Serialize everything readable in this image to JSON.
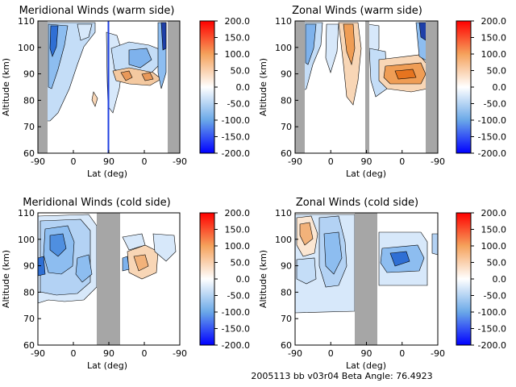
{
  "figure_footer": "2005113 bb v03r04   Beta Angle: 76.4923",
  "colorbar": {
    "ticks": [
      "200.0",
      "150.0",
      "100.0",
      "50.0",
      "0.0",
      "-50.0",
      "-100.0",
      "-150.0",
      "-200.0"
    ],
    "range": [
      -200,
      200
    ],
    "colors": {
      "positive_max": "#ff0000",
      "positive_mid": "#f5a25c",
      "neutral": "#ffffff",
      "negative_mid": "#6aa8e8",
      "negative_max": "#0000ff"
    }
  },
  "chart_data": [
    {
      "type": "heatmap",
      "title": "Meridional Winds (warm side)",
      "xlabel": "Lat (deg)",
      "ylabel": "Altitude (km)",
      "x_ticks": [
        "-90",
        "0",
        "90",
        "0",
        "-90"
      ],
      "y_ticks": [
        "110",
        "100",
        "90",
        "80",
        "70",
        "60"
      ],
      "ylim": [
        60,
        110
      ],
      "colorbar_range": [
        -200,
        200
      ],
      "gray_bands_along_track": [
        [
          0,
          0.05
        ],
        [
          0.92,
          1.0
        ]
      ],
      "blue_vertical_line_at_fraction": 0.5
    },
    {
      "type": "heatmap",
      "title": "Zonal Winds (warm side)",
      "xlabel": "Lat (deg)",
      "ylabel": "Altitude (km)",
      "x_ticks": [
        "-90",
        "0",
        "90",
        "0",
        "-90"
      ],
      "y_ticks": [
        "110",
        "100",
        "90",
        "80",
        "70",
        "60"
      ],
      "ylim": [
        60,
        110
      ],
      "colorbar_range": [
        -200,
        200
      ],
      "gray_bands_along_track": [
        [
          0,
          0.05
        ],
        [
          0.5,
          0.525
        ],
        [
          0.92,
          1.0
        ]
      ]
    },
    {
      "type": "heatmap",
      "title": "Meridional Winds (cold side)",
      "xlabel": "Lat (deg)",
      "ylabel": "Altitude (km)",
      "x_ticks": [
        "-90",
        "0",
        "90",
        "0",
        "-90"
      ],
      "y_ticks": [
        "110",
        "100",
        "90",
        "80",
        "70",
        "60"
      ],
      "ylim": [
        60,
        110
      ],
      "colorbar_range": [
        -200,
        200
      ],
      "gray_bands_along_track": [
        [
          0.385,
          0.485
        ]
      ]
    },
    {
      "type": "heatmap",
      "title": "Zonal Winds (cold side)",
      "xlabel": "Lat (deg)",
      "ylabel": "Altitude (km)",
      "x_ticks": [
        "-90",
        "0",
        "90",
        "0",
        "-90"
      ],
      "y_ticks": [
        "110",
        "100",
        "90",
        "80",
        "70",
        "60"
      ],
      "ylim": [
        60,
        110
      ],
      "colorbar_range": [
        -200,
        200
      ],
      "gray_bands_along_track": [
        [
          0.405,
          0.505
        ]
      ]
    }
  ]
}
